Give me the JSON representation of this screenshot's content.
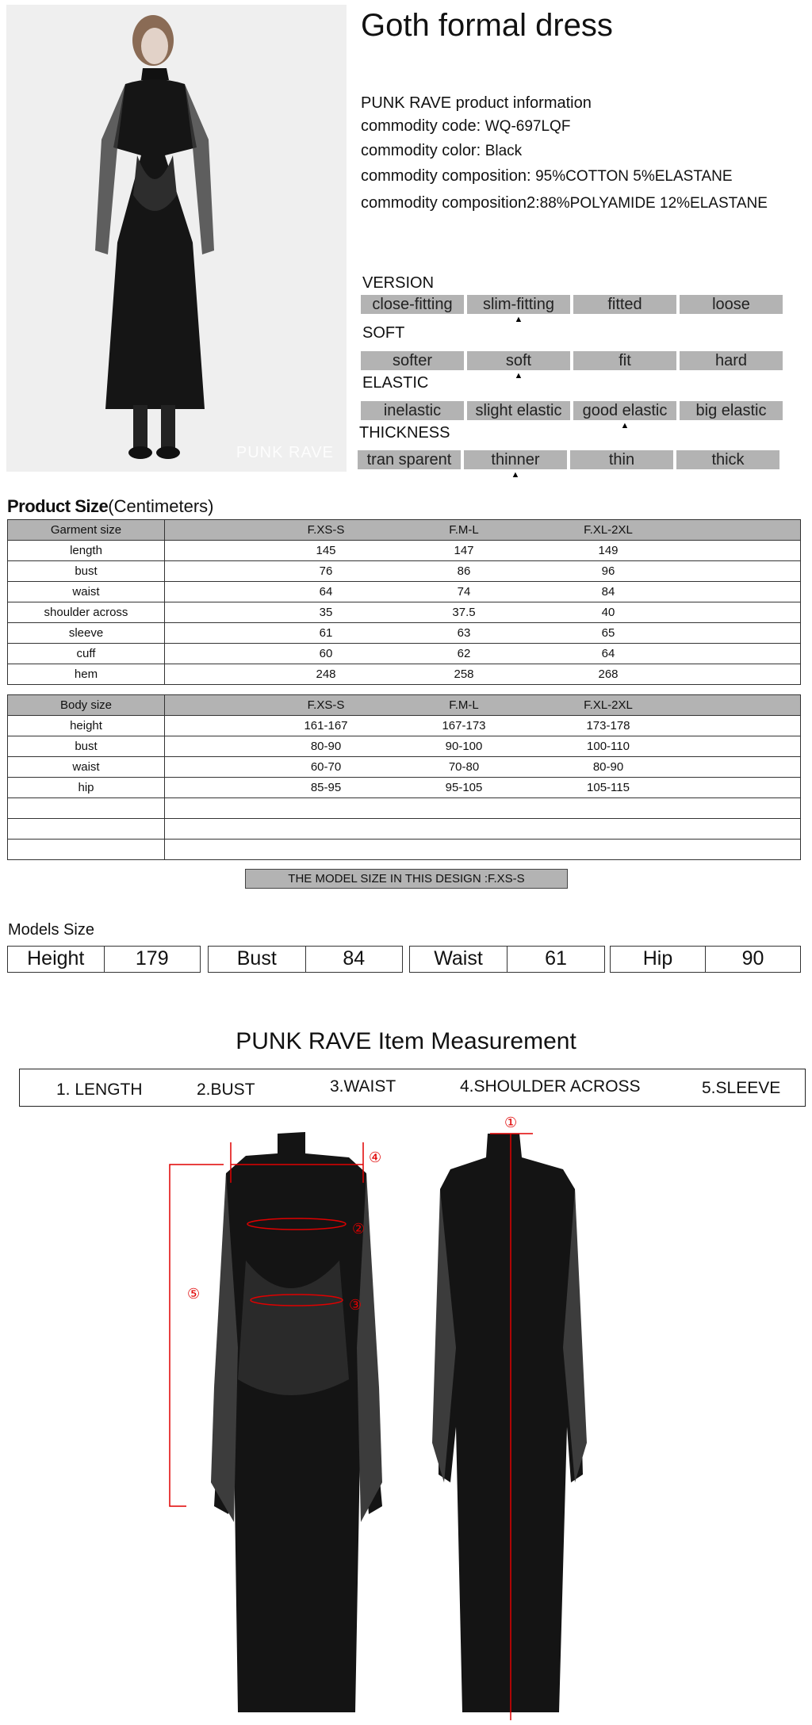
{
  "photo": {
    "watermark": "PUNK RAVE"
  },
  "title": "Goth formal dress",
  "info": {
    "heading": "PUNK RAVE product information",
    "rows": [
      {
        "label": "commodity code:",
        "value": "WQ-697LQF"
      },
      {
        "label": "commodity color:",
        "value": "Black"
      },
      {
        "label": "commodity composition:",
        "value": "95%COTTON 5%ELASTANE"
      },
      {
        "label": "commodity composition2:",
        "value": "88%POLYAMIDE 12%ELASTANE"
      }
    ]
  },
  "attributes": [
    {
      "label": "VERSION",
      "options": [
        "close-fitting",
        "slim-fitting",
        "fitted",
        "loose"
      ],
      "selected": 1
    },
    {
      "label": "SOFT",
      "options": [
        "softer",
        "soft",
        "fit",
        "hard"
      ],
      "selected": 1
    },
    {
      "label": "ELASTIC",
      "options": [
        "inelastic",
        "slight elastic",
        "good elastic",
        "big elastic"
      ],
      "selected": 2
    },
    {
      "label": "THICKNESS",
      "options": [
        "tran sparent",
        "thinner",
        "thin",
        "thick"
      ],
      "selected": 1
    }
  ],
  "product_size": {
    "title": "Product Size",
    "unit": "(Centimeters)"
  },
  "garment_table": {
    "header": [
      "Garment size",
      "F.XS-S",
      "F.M-L",
      "F.XL-2XL"
    ],
    "rows": [
      [
        "length",
        "145",
        "147",
        "149"
      ],
      [
        "bust",
        "76",
        "86",
        "96"
      ],
      [
        "waist",
        "64",
        "74",
        "84"
      ],
      [
        "shoulder across",
        "35",
        "37.5",
        "40"
      ],
      [
        "sleeve",
        "61",
        "63",
        "65"
      ],
      [
        "cuff",
        "60",
        "62",
        "64"
      ],
      [
        "hem",
        "248",
        "258",
        "268"
      ]
    ]
  },
  "body_table": {
    "header": [
      "Body size",
      "F.XS-S",
      "F.M-L",
      "F.XL-2XL"
    ],
    "rows": [
      [
        "height",
        "161-167",
        "167-173",
        "173-178"
      ],
      [
        "bust",
        "80-90",
        "90-100",
        "100-110"
      ],
      [
        "waist",
        "60-70",
        "70-80",
        "80-90"
      ],
      [
        "hip",
        "85-95",
        "95-105",
        "105-115"
      ],
      [
        "",
        "",
        "",
        ""
      ],
      [
        "",
        "",
        "",
        ""
      ],
      [
        "",
        "",
        "",
        ""
      ]
    ]
  },
  "model_banner": "THE MODEL SIZE IN THIS DESIGN :F.XS-S",
  "models_size": {
    "title": "Models Size",
    "items": [
      {
        "label": "Height",
        "value": "179"
      },
      {
        "label": "Bust",
        "value": "84"
      },
      {
        "label": "Waist",
        "value": "61"
      },
      {
        "label": "Hip",
        "value": "90"
      }
    ]
  },
  "measurement": {
    "title": "PUNK RAVE Item  Measurement",
    "items": [
      "1. LENGTH",
      "2.BUST",
      "3.WAIST",
      "4.SHOULDER ACROSS",
      "5.SLEEVE"
    ],
    "markers": [
      "①",
      "②",
      "③",
      "④",
      "⑤"
    ],
    "marker_color": "#e00000"
  },
  "colors": {
    "bar": "#b3b3b3",
    "photo_bg": "#efefef",
    "dress": "#111111"
  }
}
